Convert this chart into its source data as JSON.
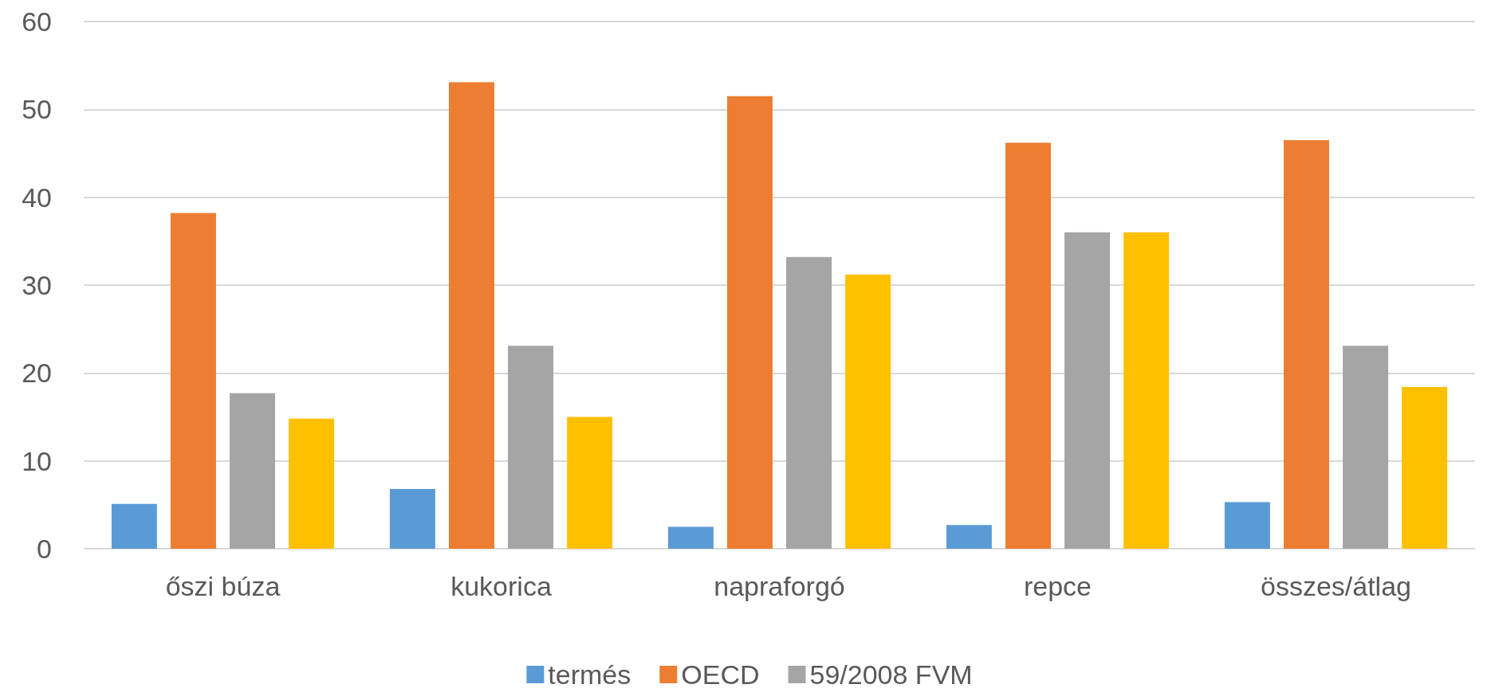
{
  "chart_data": {
    "type": "bar",
    "categories": [
      "őszi búza",
      "kukorica",
      "napraforgó",
      "repce",
      "összes/átlag"
    ],
    "series": [
      {
        "name": "termés",
        "color": "#5b9bd5",
        "values": [
          5.1,
          6.8,
          2.5,
          2.7,
          5.3
        ]
      },
      {
        "name": "OECD",
        "color": "#ed7d31",
        "values": [
          38.2,
          53.1,
          51.5,
          46.2,
          46.5
        ]
      },
      {
        "name": "59/2008 FVM",
        "color": "#a5a5a5",
        "values": [
          17.7,
          23.1,
          33.2,
          36.0,
          23.1
        ]
      },
      {
        "color": "#ffc000",
        "values": [
          14.8,
          15.0,
          31.2,
          36.0,
          18.4
        ]
      }
    ],
    "ylim": [
      0,
      60
    ],
    "yticks": [
      0,
      10,
      20,
      30,
      40,
      50,
      60
    ],
    "grid": "y",
    "legend": "bottom"
  }
}
